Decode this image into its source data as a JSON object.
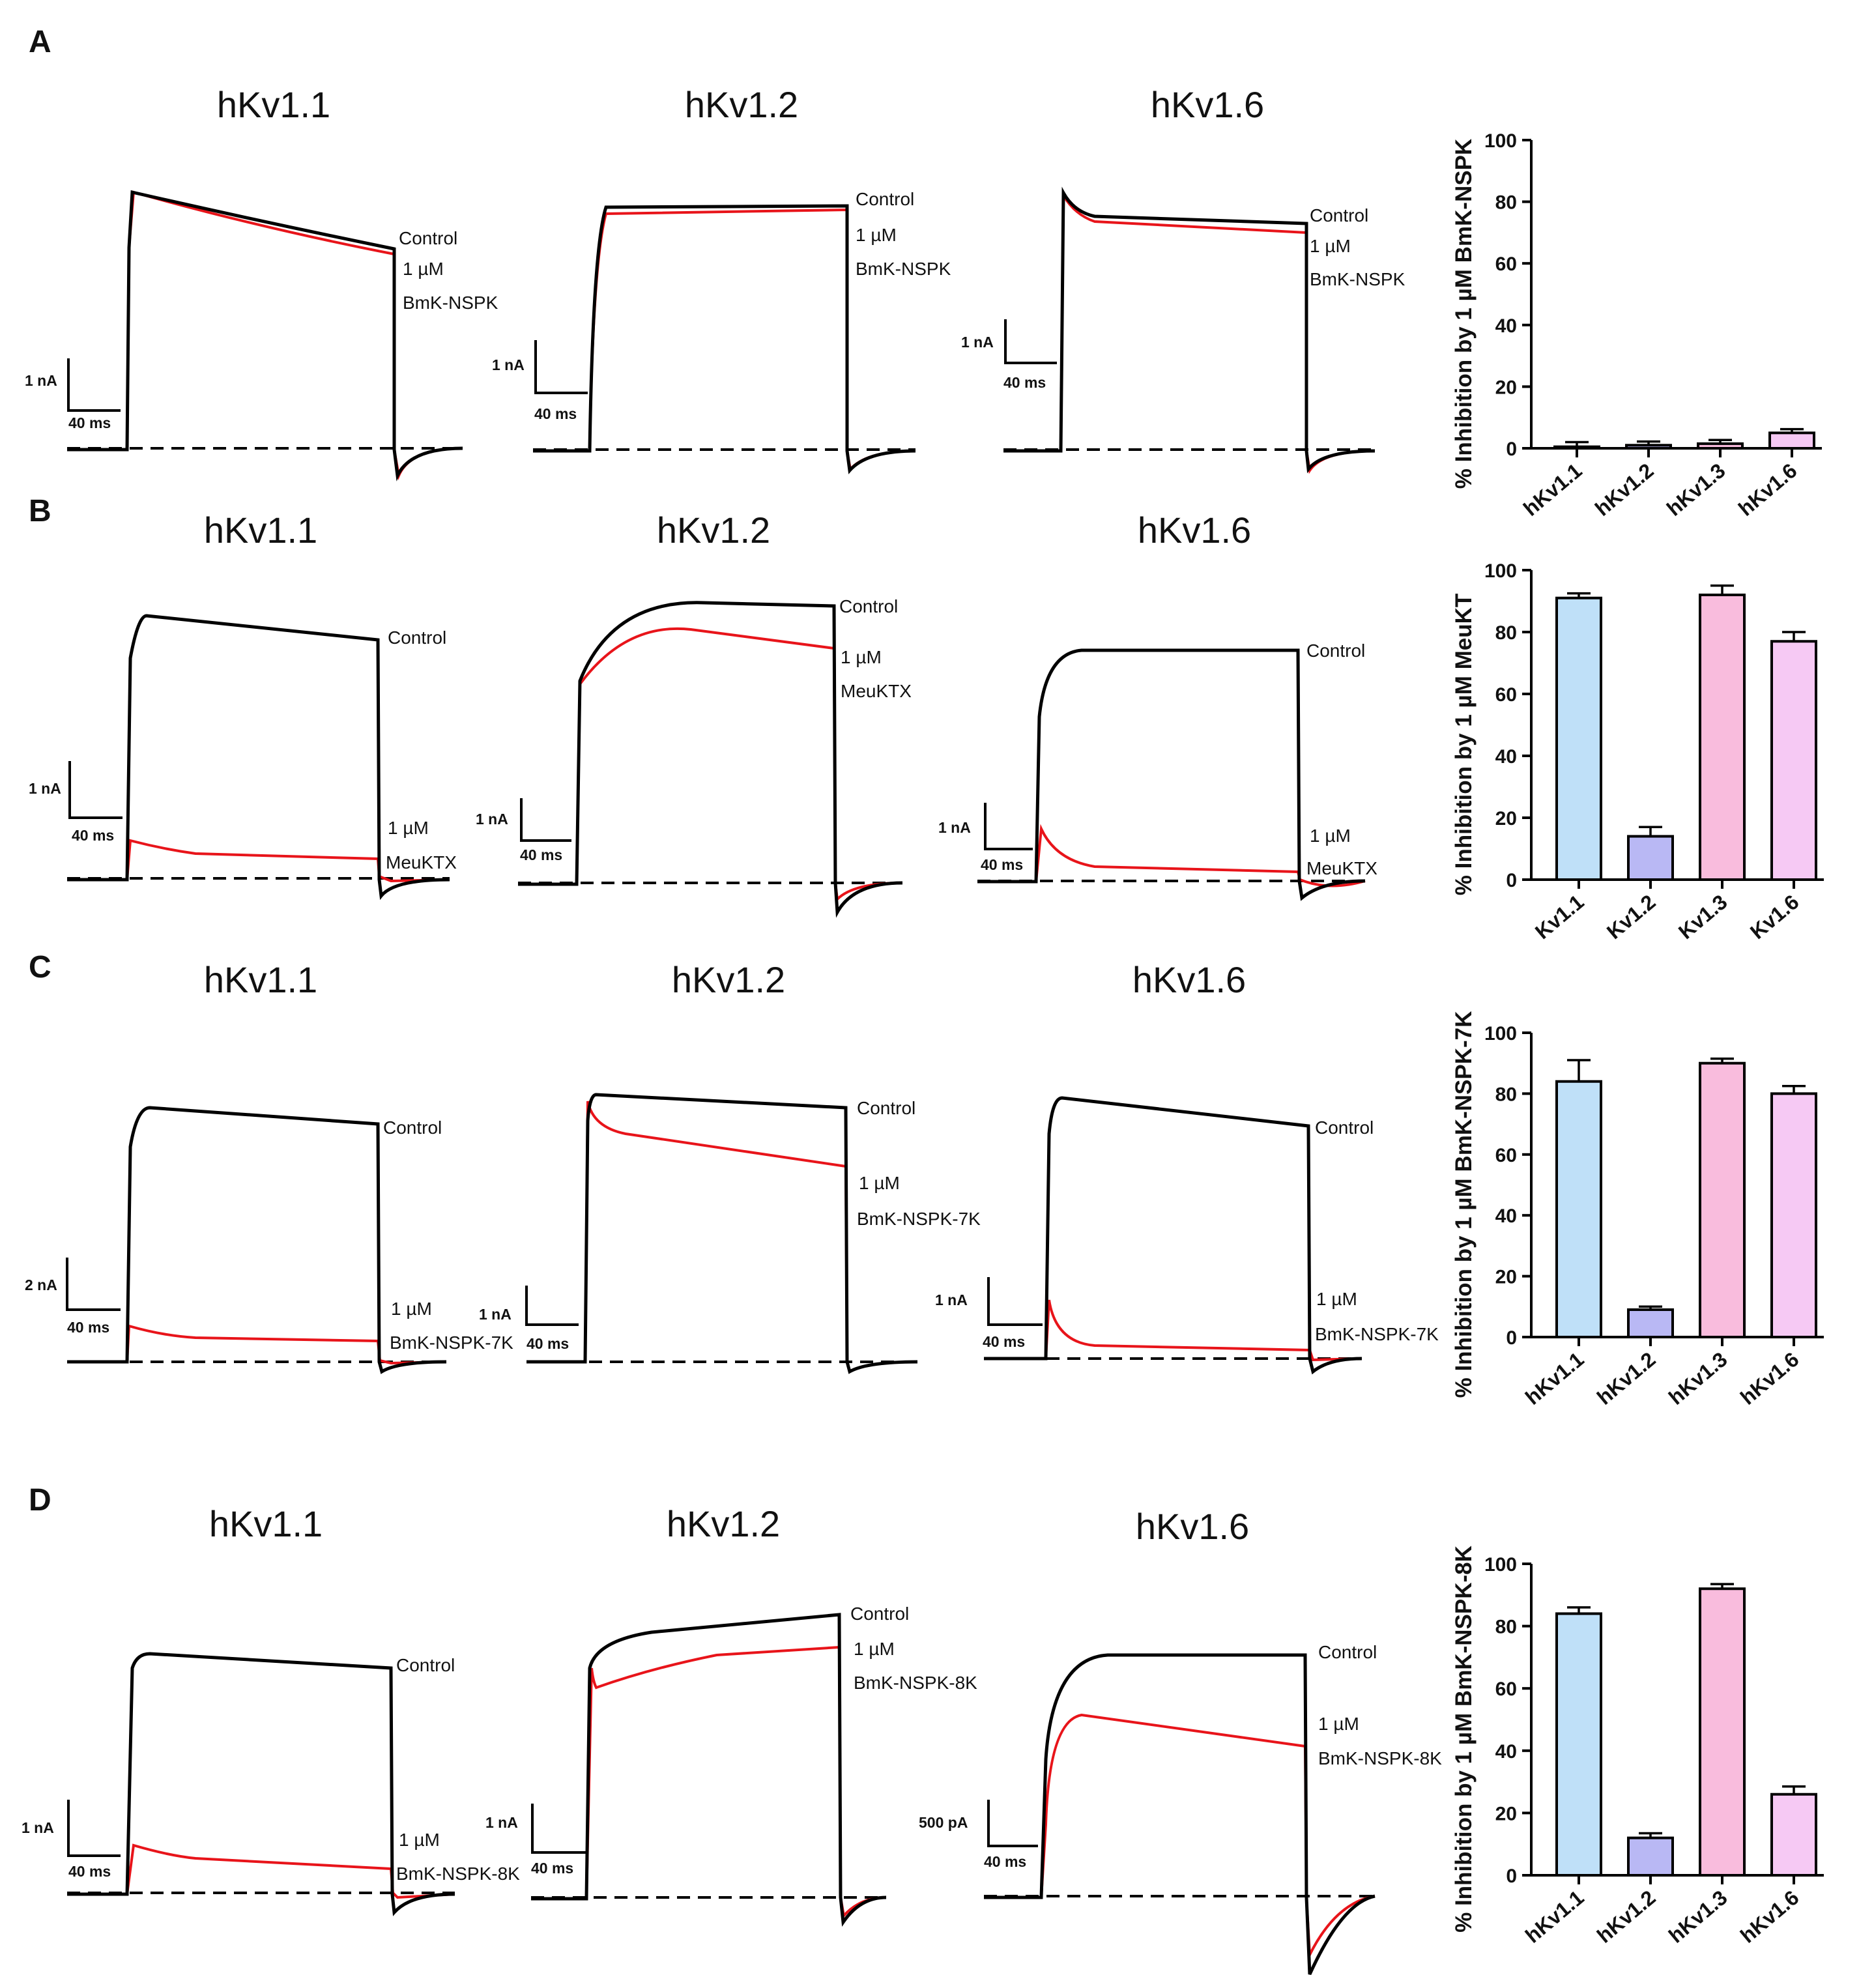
{
  "colors": {
    "control": "#000000",
    "toxin": "#e8141a",
    "hKv1.1": "#bfe0f8",
    "hKv1.2": "#b9b8f4",
    "hKv1.3": "#f9bcdd",
    "hKv1.6": "#f6c9f4"
  },
  "panels": [
    {
      "label": "A",
      "traces": [
        {
          "title": "hKv1.1",
          "control_label": "Control",
          "toxin_label_1": "1 µM",
          "toxin_label_2": "BmK-NSPK",
          "scale_y": "1 nA",
          "scale_x": "40 ms"
        },
        {
          "title": "hKv1.2",
          "control_label": "Control",
          "toxin_label_1": "1 µM",
          "toxin_label_2": "BmK-NSPK",
          "scale_y": "1 nA",
          "scale_x": "40 ms"
        },
        {
          "title": "hKv1.6",
          "control_label": "Control",
          "toxin_label_1": "1 µM",
          "toxin_label_2": "BmK-NSPK",
          "scale_y": "1 nA",
          "scale_x": "40 ms"
        }
      ]
    },
    {
      "label": "B",
      "traces": [
        {
          "title": "hKv1.1",
          "control_label": "Control",
          "toxin_label_1": "1 µM",
          "toxin_label_2": "MeuKTX",
          "scale_y": "1 nA",
          "scale_x": "40 ms"
        },
        {
          "title": "hKv1.2",
          "control_label": "Control",
          "toxin_label_1": "1 µM",
          "toxin_label_2": "MeuKTX",
          "scale_y": "1 nA",
          "scale_x": "40 ms"
        },
        {
          "title": "hKv1.6",
          "control_label": "Control",
          "toxin_label_1": "1 µM",
          "toxin_label_2": "MeuKTX",
          "scale_y": "1 nA",
          "scale_x": "40 ms"
        }
      ]
    },
    {
      "label": "C",
      "traces": [
        {
          "title": "hKv1.1",
          "control_label": "Control",
          "toxin_label_1": "1 µM",
          "toxin_label_2": "BmK-NSPK-7K",
          "scale_y": "2 nA",
          "scale_x": "40 ms"
        },
        {
          "title": "hKv1.2",
          "control_label": "Control",
          "toxin_label_1": "1 µM",
          "toxin_label_2": "BmK-NSPK-7K",
          "scale_y": "1 nA",
          "scale_x": "40 ms"
        },
        {
          "title": "hKv1.6",
          "control_label": "Control",
          "toxin_label_1": "1 µM",
          "toxin_label_2": "BmK-NSPK-7K",
          "scale_y": "1 nA",
          "scale_x": "40 ms"
        }
      ]
    },
    {
      "label": "D",
      "traces": [
        {
          "title": "hKv1.1",
          "control_label": "Control",
          "toxin_label_1": "1 µM",
          "toxin_label_2": "BmK-NSPK-8K",
          "scale_y": "1 nA",
          "scale_x": "40 ms"
        },
        {
          "title": "hKv1.2",
          "control_label": "Control",
          "toxin_label_1": "1 µM",
          "toxin_label_2": "BmK-NSPK-8K",
          "scale_y": "1 nA",
          "scale_x": "40 ms"
        },
        {
          "title": "hKv1.6",
          "control_label": "Control",
          "toxin_label_1": "1 µM",
          "toxin_label_2": "BmK-NSPK-8K",
          "scale_y": "500 pA",
          "scale_x": "40 ms"
        }
      ]
    }
  ],
  "chart_data": [
    {
      "type": "bar",
      "panel": "A",
      "ylabel": "% Inhibition by 1 µM BmK-NSPK",
      "categories": [
        "hKv1.1",
        "hKv1.2",
        "hKv1.3",
        "hKv1.6"
      ],
      "values": [
        0.5,
        1,
        1.5,
        5
      ],
      "errors": [
        1.5,
        1.2,
        1.2,
        1.2
      ],
      "ylim": [
        0,
        100
      ],
      "yticks": [
        0,
        20,
        40,
        60,
        80,
        100
      ]
    },
    {
      "type": "bar",
      "panel": "B",
      "ylabel": "% Inhibition by 1 µM MeuKT",
      "categories": [
        "Kv1.1",
        "Kv1.2",
        "Kv1.3",
        "Kv1.6"
      ],
      "values": [
        91,
        14,
        92,
        77
      ],
      "errors": [
        1.5,
        3,
        3,
        3
      ],
      "ylim": [
        0,
        100
      ],
      "yticks": [
        0,
        20,
        40,
        60,
        80,
        100
      ]
    },
    {
      "type": "bar",
      "panel": "C",
      "ylabel": "% Inhibition by 1 µM BmK-NSPK-7K",
      "categories": [
        "hKv1.1",
        "hKv1.2",
        "hKv1.3",
        "hKv1.6"
      ],
      "values": [
        84,
        9,
        90,
        80
      ],
      "errors": [
        7,
        1,
        1.5,
        2.5
      ],
      "ylim": [
        0,
        100
      ],
      "yticks": [
        0,
        20,
        40,
        60,
        80,
        100
      ]
    },
    {
      "type": "bar",
      "panel": "D",
      "ylabel": "% Inhibition by 1 µM BmK-NSPK-8K",
      "categories": [
        "hKv1.1",
        "hKv1.2",
        "hKv1.3",
        "hKv1.6"
      ],
      "values": [
        84,
        12,
        92,
        26
      ],
      "errors": [
        2,
        1.5,
        1.5,
        2.5
      ],
      "ylim": [
        0,
        100
      ],
      "yticks": [
        0,
        20,
        40,
        60,
        80,
        100
      ]
    }
  ]
}
